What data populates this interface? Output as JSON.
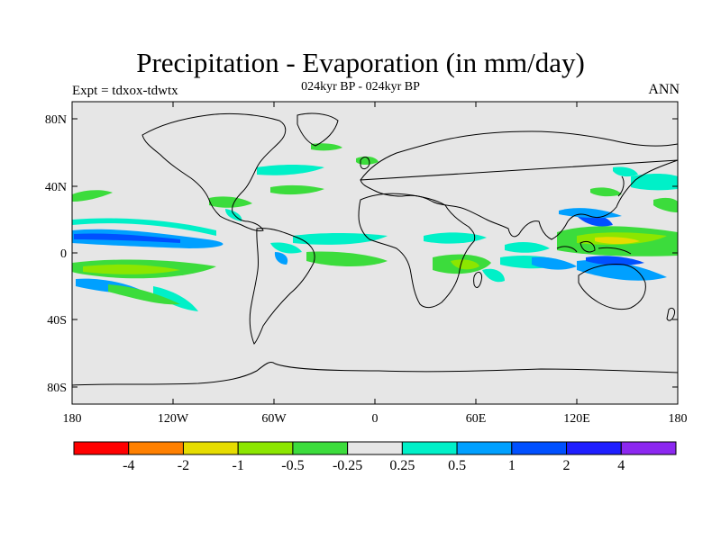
{
  "header": {
    "title": "Precipitation - Evaporation (in mm/day)",
    "subtitle": "024kyr BP - 024kyr BP",
    "left_label": "Expt = tdxox-tdwtx",
    "right_label": "ANN"
  },
  "axes": {
    "lat_ticks": [
      "80N",
      "40N",
      "0",
      "40S",
      "80S"
    ],
    "lon_ticks": [
      "180",
      "120W",
      "60W",
      "0",
      "60E",
      "120E",
      "180"
    ]
  },
  "colorbar": {
    "colors": [
      "#ff0000",
      "#ff8000",
      "#e6dc00",
      "#8ce600",
      "#3cdc3c",
      "#e6e6e6",
      "#00f0c8",
      "#00a0ff",
      "#0050ff",
      "#1e1eff",
      "#8c28f0"
    ],
    "labels": [
      "-4",
      "-2",
      "-1",
      "-0.5",
      "-0.25",
      "0.25",
      "0.5",
      "1",
      "2",
      "4"
    ]
  },
  "map_colors": {
    "background": "#e6e6e6",
    "coast": "#000000"
  }
}
